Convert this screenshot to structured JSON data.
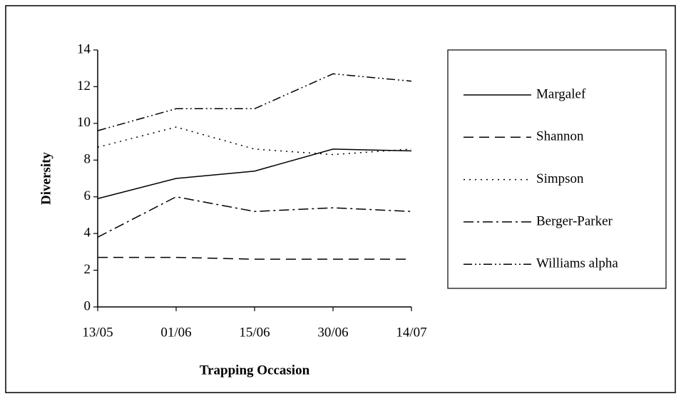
{
  "chart_data": {
    "type": "line",
    "x_label": "Trapping Occasion",
    "y_label": "Diversity",
    "categories": [
      "13/05",
      "01/06",
      "15/06",
      "30/06",
      "14/07"
    ],
    "series": [
      {
        "name": "Margalef",
        "color": "#000000",
        "values": [
          5.9,
          7.0,
          7.4,
          8.6,
          8.5
        ]
      },
      {
        "name": "Shannon",
        "color": "#000000",
        "values": [
          2.7,
          2.7,
          2.6,
          2.6,
          2.6
        ]
      },
      {
        "name": "Simpson",
        "color": "#000000",
        "values": [
          8.7,
          9.8,
          8.6,
          8.3,
          8.6
        ]
      },
      {
        "name": "Berger-Parker",
        "color": "#000000",
        "values": [
          3.8,
          6.0,
          5.2,
          5.4,
          5.2
        ]
      },
      {
        "name": "Williams alpha",
        "color": "#000000",
        "values": [
          9.6,
          10.8,
          10.8,
          12.7,
          12.3
        ]
      }
    ],
    "ylim": [
      0,
      14
    ],
    "yticks": [
      0,
      2,
      4,
      6,
      8,
      10,
      12,
      14
    ],
    "grid": false,
    "legend": "right"
  }
}
